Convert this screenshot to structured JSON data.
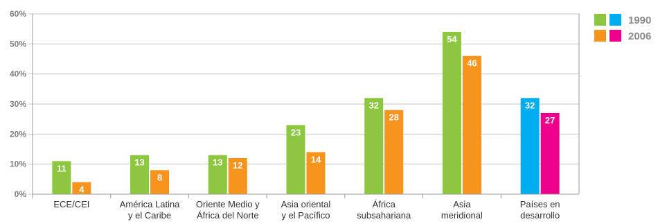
{
  "chart_data": {
    "type": "bar",
    "categories": [
      [
        "ECE/CEI"
      ],
      [
        "América Latina",
        "y el Caribe"
      ],
      [
        "Oriente Medio y",
        "África del Norte"
      ],
      [
        "Asia oriental",
        "y el Pacífico"
      ],
      [
        "África",
        "subsahariana"
      ],
      [
        "Asia",
        "meridional"
      ],
      [
        "Países en",
        "desarrollo"
      ]
    ],
    "series": [
      {
        "name": "1990",
        "values": [
          11,
          13,
          13,
          23,
          32,
          54,
          32
        ]
      },
      {
        "name": "2006",
        "values": [
          4,
          8,
          12,
          14,
          28,
          46,
          27
        ]
      }
    ],
    "ylim": [
      0,
      60
    ],
    "yticks": [
      "0%",
      "10%",
      "20%",
      "30%",
      "40%",
      "50%",
      "60%"
    ],
    "grid": true,
    "legend_position": "top-right",
    "legend": [
      {
        "colors": [
          "#8dc63f",
          "#00aeef"
        ],
        "label": "1990"
      },
      {
        "colors": [
          "#f7941d",
          "#ec008c"
        ],
        "label": "2006"
      }
    ],
    "colors": {
      "1990": "#8dc63f",
      "2006": "#f7941d",
      "1990_highlight": "#00aeef",
      "2006_highlight": "#ec008c"
    },
    "highlight_category_index": 6
  }
}
